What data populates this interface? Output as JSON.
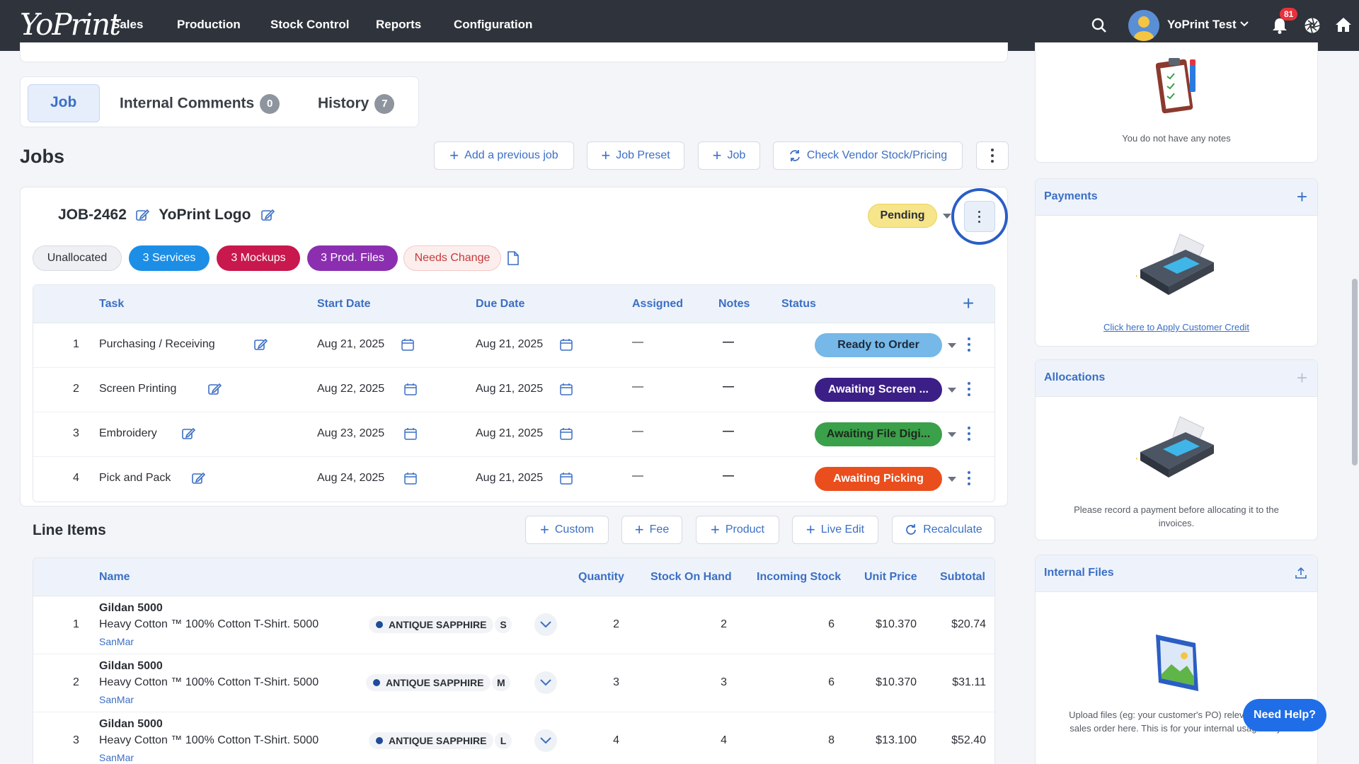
{
  "nav": {
    "logo": "YoPrint",
    "items": [
      "Sales",
      "Production",
      "Stock Control",
      "Reports",
      "Configuration"
    ],
    "user_name": "YoPrint Test",
    "notification_count": "81"
  },
  "tabs": {
    "job": "Job",
    "internal_comments": "Internal Comments",
    "internal_comments_count": "0",
    "history": "History",
    "history_count": "7"
  },
  "jobs": {
    "heading": "Jobs",
    "buttons": {
      "add_previous": "Add a previous job",
      "job_preset": "Job Preset",
      "job": "Job",
      "check_vendor": "Check Vendor Stock/Pricing"
    },
    "job_id": "JOB-2462",
    "job_name": "YoPrint Logo",
    "status": "Pending",
    "tags": {
      "unallocated": "Unallocated",
      "services": "3 Services",
      "mockups": "3 Mockups",
      "prod_files": "3 Prod. Files",
      "needs_change": "Needs Change"
    },
    "task_headers": {
      "task": "Task",
      "start_date": "Start Date",
      "due_date": "Due Date",
      "assigned": "Assigned",
      "notes": "Notes",
      "status": "Status"
    },
    "tasks": [
      {
        "num": "1",
        "name": "Purchasing / Receiving",
        "start": "Aug 21, 2025",
        "due": "Aug 21, 2025",
        "assigned": "—",
        "notes": "—",
        "status": "Ready to Order",
        "color": "#76b8e8",
        "text_color": "#1c2a3a"
      },
      {
        "num": "2",
        "name": "Screen Printing",
        "start": "Aug 22, 2025",
        "due": "Aug 21, 2025",
        "assigned": "—",
        "notes": "—",
        "status": "Awaiting Screen ...",
        "color": "#3b1f86",
        "text_color": "#ffffff"
      },
      {
        "num": "3",
        "name": "Embroidery",
        "start": "Aug 23, 2025",
        "due": "Aug 21, 2025",
        "assigned": "—",
        "notes": "—",
        "status": "Awaiting File Digi...",
        "color": "#3aa04a",
        "text_color": "#1c2a1c"
      },
      {
        "num": "4",
        "name": "Pick and Pack",
        "start": "Aug 24, 2025",
        "due": "Aug 21, 2025",
        "assigned": "—",
        "notes": "—",
        "status": "Awaiting Picking",
        "color": "#ea4e1d",
        "text_color": "#ffffff"
      }
    ]
  },
  "line_items": {
    "heading": "Line Items",
    "buttons": {
      "custom": "Custom",
      "fee": "Fee",
      "product": "Product",
      "live_edit": "Live Edit",
      "recalculate": "Recalculate"
    },
    "headers": {
      "name": "Name",
      "quantity": "Quantity",
      "stock_on_hand": "Stock On Hand",
      "incoming_stock": "Incoming Stock",
      "unit_price": "Unit Price",
      "subtotal": "Subtotal"
    },
    "rows": [
      {
        "num": "1",
        "title": "Gildan 5000",
        "desc": "Heavy Cotton ™ 100% Cotton T-Shirt. 5000",
        "vendor": "SanMar",
        "color": "ANTIQUE SAPPHIRE",
        "size": "S",
        "qty": "2",
        "on_hand": "2",
        "incoming": "6",
        "unit_price": "$10.370",
        "subtotal": "$20.74"
      },
      {
        "num": "2",
        "title": "Gildan 5000",
        "desc": "Heavy Cotton ™ 100% Cotton T-Shirt. 5000",
        "vendor": "SanMar",
        "color": "ANTIQUE SAPPHIRE",
        "size": "M",
        "qty": "3",
        "on_hand": "3",
        "incoming": "6",
        "unit_price": "$10.370",
        "subtotal": "$31.11"
      },
      {
        "num": "3",
        "title": "Gildan 5000",
        "desc": "Heavy Cotton ™ 100% Cotton T-Shirt. 5000",
        "vendor": "SanMar",
        "color": "ANTIQUE SAPPHIRE",
        "size": "L",
        "qty": "4",
        "on_hand": "4",
        "incoming": "8",
        "unit_price": "$13.100",
        "subtotal": "$52.40"
      }
    ]
  },
  "sidebar": {
    "notes_empty": "You do not have any notes",
    "payments_title": "Payments",
    "payments_link": "Click here to Apply Customer Credit",
    "allocations_title": "Allocations",
    "allocations_text": "Please record a payment before allocating it to the invoices.",
    "internal_files_title": "Internal Files",
    "internal_files_text": "Upload files (eg: your customer's PO) relevant to this sales order here. This is for your internal usage only."
  },
  "need_help": "Need Help?"
}
